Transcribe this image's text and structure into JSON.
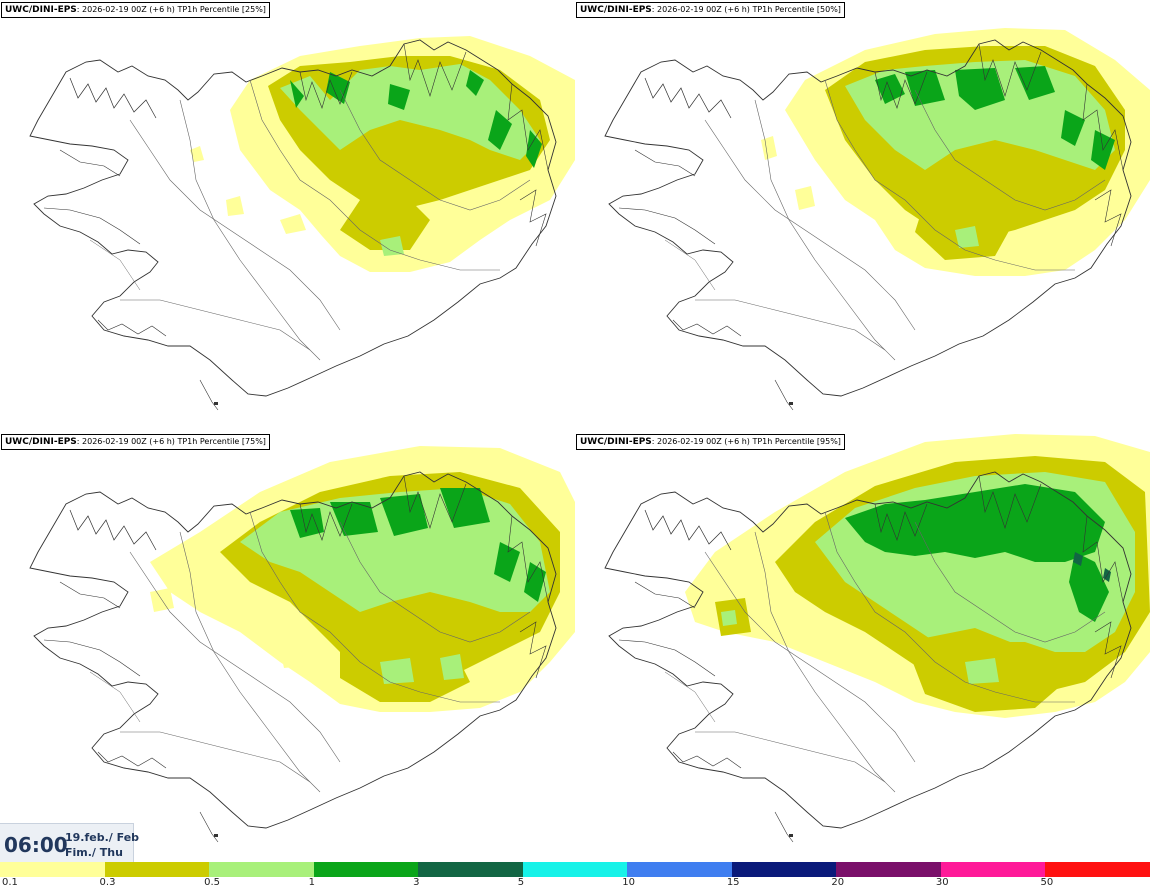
{
  "panels": [
    {
      "model": "UWC/DINI-EPS",
      "run": ": 2026-02-19 00Z (+6 h) TP1h Percentile [25%]",
      "level": 0
    },
    {
      "model": "UWC/DINI-EPS",
      "run": ": 2026-02-19 00Z (+6 h) TP1h Percentile [50%]",
      "level": 1
    },
    {
      "model": "UWC/DINI-EPS",
      "run": ": 2026-02-19 00Z (+6 h) TP1h Percentile [75%]",
      "level": 2
    },
    {
      "model": "UWC/DINI-EPS",
      "run": ": 2026-02-19 00Z (+6 h) TP1h Percentile [95%]",
      "level": 3
    }
  ],
  "valid_time": {
    "time": "06:00",
    "date": "19.feb./ Feb",
    "day": "Fim./ Thu"
  },
  "legend": {
    "ticks": [
      "0.1",
      "0.3",
      "0.5",
      "1",
      "3",
      "5",
      "10",
      "15",
      "20",
      "30",
      "50"
    ],
    "colors": [
      "#ffff99",
      "#cccc00",
      "#a8f07a",
      "#0aa519",
      "#126644",
      "#17f2e8",
      "#3f7ef0",
      "#0a1a7a",
      "#7a0f6a",
      "#ff1a99",
      "#ff1111"
    ]
  },
  "map": {
    "coastline_color": "#333333",
    "road_color": "#555555"
  }
}
